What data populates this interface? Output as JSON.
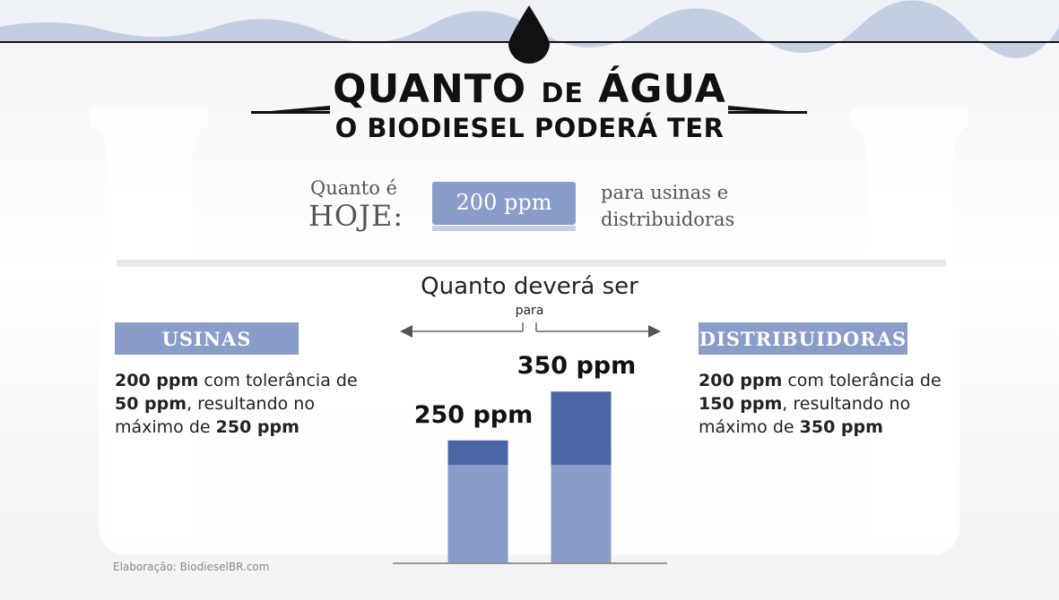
{
  "header": {
    "title_a": "QUANTO",
    "title_b": "DE",
    "title_c": "ÁGUA",
    "title_line2": "O BIODIESEL PODERÁ TER"
  },
  "today": {
    "label_small": "Quanto é",
    "label_big": "HOJE:",
    "value": "200 ppm",
    "note": "para usinas e distribuidoras"
  },
  "future": {
    "title": "Quanto deverá ser",
    "subtitle": "para"
  },
  "panels": [
    {
      "heading": "USINAS",
      "text": [
        "200 ppm",
        " com tolerância de ",
        "50 ppm",
        ", resultando no máximo de ",
        "250 ppm"
      ]
    },
    {
      "heading": "DISTRIBUIDORAS",
      "text": [
        "200 ppm",
        " com tolerância de ",
        "150 ppm",
        ", resultando no máximo de ",
        "350 ppm"
      ]
    }
  ],
  "chart": {
    "series": [
      {
        "color": "#8a9cc8",
        "values": [
          200,
          200
        ]
      },
      {
        "color": "#4a65a3",
        "values": [
          50,
          150
        ]
      }
    ],
    "value_labels": [
      "250 ppm",
      "350 ppm"
    ]
  },
  "credit": "Elaboração: BiodieselBR.com"
}
